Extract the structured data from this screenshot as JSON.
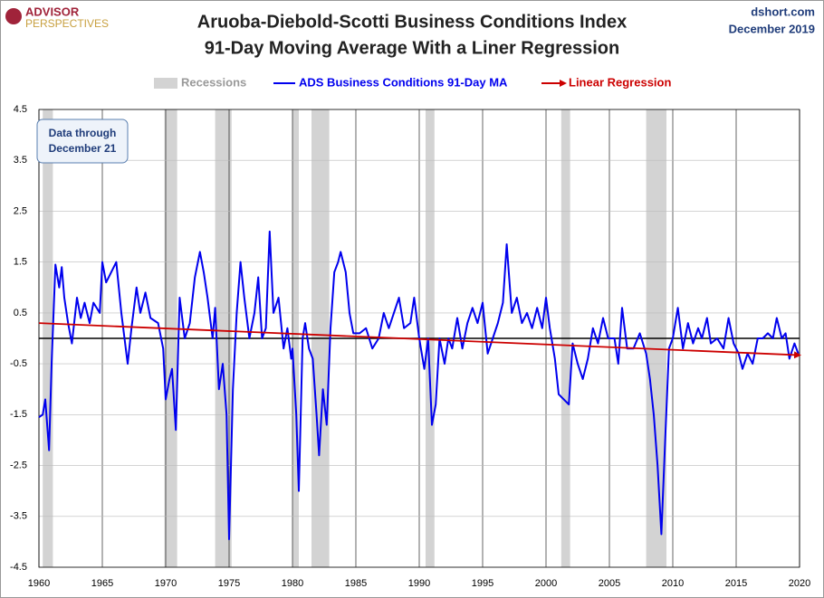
{
  "brand": [
    "ADVISOR",
    "PERSPECTIVES"
  ],
  "source": [
    "dshort.com",
    "December 2019"
  ],
  "chart_data": {
    "type": "line",
    "title": [
      "Aruoba-Diebold-Scotti Business Conditions Index",
      "91-Day Moving Average With a Liner Regression"
    ],
    "annotation": [
      "Data through",
      "December 21"
    ],
    "recessions_name": "Recessions",
    "recessions_color": "#d3d3d3",
    "recessions": [
      [
        1960.3,
        1961.1
      ],
      [
        1969.9,
        1970.9
      ],
      [
        1973.9,
        1975.2
      ],
      [
        1980.0,
        1980.5
      ],
      [
        1981.5,
        1982.9
      ],
      [
        1990.5,
        1991.2
      ],
      [
        2001.2,
        2001.9
      ],
      [
        2007.9,
        2009.5
      ]
    ],
    "xlim": [
      1960,
      2020
    ],
    "xticks": [
      1960,
      1965,
      1970,
      1975,
      1980,
      1985,
      1990,
      1995,
      2000,
      2005,
      2010,
      2015,
      2020
    ],
    "ylim": [
      -4.5,
      4.5
    ],
    "yticks": [
      4.5,
      3.5,
      2.5,
      1.5,
      0.5,
      -0.5,
      -1.5,
      -2.5,
      -3.5,
      -4.5
    ],
    "grid": true,
    "series": [
      {
        "name": "ADS Business Conditions 91-Day MA",
        "color": "#0000ee",
        "x": [
          1960.0,
          1960.3,
          1960.5,
          1960.8,
          1961.0,
          1961.3,
          1961.6,
          1961.8,
          1962.0,
          1962.3,
          1962.6,
          1963.0,
          1963.3,
          1963.6,
          1964.0,
          1964.3,
          1964.8,
          1965.0,
          1965.3,
          1965.7,
          1966.1,
          1966.5,
          1967.0,
          1967.3,
          1967.7,
          1968.0,
          1968.4,
          1968.8,
          1969.4,
          1969.8,
          1970.0,
          1970.3,
          1970.5,
          1970.8,
          1971.1,
          1971.5,
          1971.9,
          1972.3,
          1972.7,
          1973.0,
          1973.3,
          1973.7,
          1973.9,
          1974.2,
          1974.5,
          1974.8,
          1975.0,
          1975.3,
          1975.6,
          1975.9,
          1976.2,
          1976.6,
          1977.0,
          1977.3,
          1977.6,
          1977.9,
          1978.2,
          1978.5,
          1978.9,
          1979.3,
          1979.6,
          1979.9,
          1980.0,
          1980.3,
          1980.5,
          1980.8,
          1981.0,
          1981.3,
          1981.6,
          1981.9,
          1982.1,
          1982.4,
          1982.7,
          1983.0,
          1983.3,
          1983.6,
          1983.8,
          1984.2,
          1984.5,
          1984.8,
          1985.3,
          1985.8,
          1986.3,
          1986.8,
          1987.2,
          1987.6,
          1988.0,
          1988.4,
          1988.8,
          1989.3,
          1989.6,
          1990.0,
          1990.4,
          1990.7,
          1991.0,
          1991.3,
          1991.6,
          1992.0,
          1992.3,
          1992.6,
          1993.0,
          1993.4,
          1993.8,
          1994.2,
          1994.6,
          1995.0,
          1995.4,
          1995.8,
          1996.2,
          1996.6,
          1996.9,
          1997.3,
          1997.7,
          1998.1,
          1998.5,
          1998.9,
          1999.3,
          1999.7,
          2000.0,
          2000.3,
          2000.7,
          2001.0,
          2001.4,
          2001.8,
          2002.1,
          2002.5,
          2002.9,
          2003.3,
          2003.7,
          2004.1,
          2004.5,
          2004.9,
          2005.4,
          2005.7,
          2006.0,
          2006.4,
          2006.9,
          2007.4,
          2007.9,
          2008.2,
          2008.5,
          2008.8,
          2009.1,
          2009.4,
          2009.7,
          2010.0,
          2010.4,
          2010.8,
          2011.2,
          2011.6,
          2012.0,
          2012.3,
          2012.7,
          2013.0,
          2013.5,
          2014.0,
          2014.4,
          2014.8,
          2015.2,
          2015.5,
          2015.9,
          2016.3,
          2016.7,
          2017.1,
          2017.5,
          2017.9,
          2018.2,
          2018.6,
          2018.9,
          2019.2,
          2019.6,
          2019.9
        ],
        "values": [
          -1.55,
          -1.5,
          -1.2,
          -2.2,
          -0.5,
          1.45,
          1.0,
          1.4,
          0.8,
          0.3,
          -0.1,
          0.8,
          0.4,
          0.7,
          0.3,
          0.7,
          0.5,
          1.5,
          1.1,
          1.3,
          1.5,
          0.5,
          -0.5,
          0.2,
          1.0,
          0.5,
          0.9,
          0.4,
          0.3,
          -0.2,
          -1.2,
          -0.8,
          -0.6,
          -1.8,
          0.8,
          0.0,
          0.3,
          1.2,
          1.7,
          1.3,
          0.8,
          0.0,
          0.6,
          -1.0,
          -0.5,
          -1.5,
          -3.95,
          -1.0,
          0.5,
          1.5,
          0.8,
          0.0,
          0.5,
          1.2,
          0.0,
          0.2,
          2.1,
          0.5,
          0.8,
          -0.2,
          0.2,
          -0.4,
          -0.2,
          -1.5,
          -3.0,
          0.0,
          0.3,
          -0.2,
          -0.4,
          -1.5,
          -2.3,
          -1.0,
          -1.7,
          0.2,
          1.3,
          1.5,
          1.7,
          1.3,
          0.5,
          0.1,
          0.1,
          0.2,
          -0.2,
          0.0,
          0.5,
          0.2,
          0.5,
          0.8,
          0.2,
          0.3,
          0.8,
          0.0,
          -0.6,
          0.0,
          -1.7,
          -1.3,
          0.0,
          -0.5,
          0.0,
          -0.2,
          0.4,
          -0.2,
          0.3,
          0.6,
          0.3,
          0.7,
          -0.3,
          0.0,
          0.3,
          0.7,
          1.85,
          0.5,
          0.8,
          0.3,
          0.5,
          0.2,
          0.6,
          0.2,
          0.8,
          0.2,
          -0.4,
          -1.1,
          -1.2,
          -1.3,
          -0.1,
          -0.5,
          -0.8,
          -0.4,
          0.2,
          -0.1,
          0.4,
          0.0,
          0.0,
          -0.5,
          0.6,
          -0.2,
          -0.2,
          0.1,
          -0.3,
          -0.8,
          -1.5,
          -2.5,
          -3.85,
          -2.0,
          -0.2,
          0.0,
          0.6,
          -0.2,
          0.3,
          -0.1,
          0.2,
          0.0,
          0.4,
          -0.1,
          0.0,
          -0.2,
          0.4,
          -0.1,
          -0.3,
          -0.6,
          -0.3,
          -0.5,
          0.0,
          0.0,
          0.1,
          0.0,
          0.4,
          0.0,
          0.1,
          -0.4,
          -0.1,
          -0.3
        ]
      },
      {
        "name": "Linear Regression",
        "color": "#cc0000",
        "x": [
          1960,
          2020
        ],
        "values": [
          0.3,
          -0.33
        ]
      }
    ]
  }
}
